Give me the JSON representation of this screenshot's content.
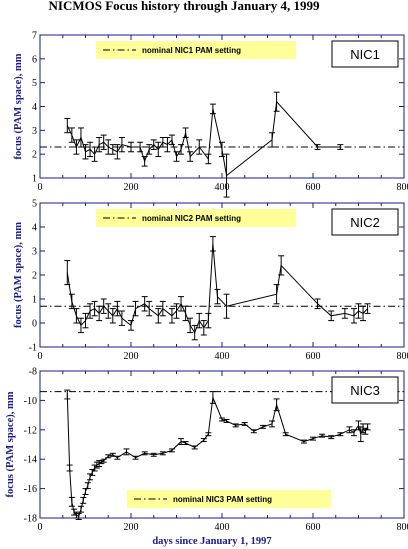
{
  "title": "NICMOS Focus history through January 4, 1999",
  "colors": {
    "axis": "#1a1a8c",
    "data": "#000000",
    "legend_bg": "#ffff99",
    "box_border": "#000000"
  },
  "chart_data": [
    {
      "type": "line",
      "panel_label": "NIC1",
      "ylabel": "focus (PAM space), mm",
      "xlabel": "",
      "xlim": [
        0,
        800
      ],
      "ylim": [
        1,
        7
      ],
      "xticks": [
        0,
        200,
        400,
        600,
        800
      ],
      "yticks": [
        1,
        2,
        3,
        4,
        5,
        6,
        7
      ],
      "legend": {
        "text": "nominal NIC1 PAM setting",
        "placement": "top-center"
      },
      "nominal": 2.3,
      "series": [
        {
          "x": [
            60,
            70,
            80,
            90,
            100,
            110,
            120,
            130,
            140,
            150,
            160,
            170,
            180,
            200,
            220,
            230,
            240,
            250,
            260,
            270,
            280,
            290,
            300,
            310,
            320,
            330,
            350,
            370,
            380,
            400,
            410,
            510,
            520,
            610,
            660
          ],
          "y": [
            3.2,
            2.8,
            2.3,
            2.7,
            2.1,
            2.2,
            2.0,
            2.4,
            2.5,
            2.3,
            2.2,
            2.1,
            2.4,
            2.3,
            2.3,
            1.7,
            2.2,
            2.4,
            2.2,
            2.5,
            2.4,
            2.6,
            1.9,
            2.2,
            2.9,
            1.9,
            2.3,
            1.8,
            3.9,
            2.2,
            1.1,
            2.6,
            4.2,
            2.3,
            2.3
          ],
          "err": [
            0.3,
            0.3,
            0.3,
            0.4,
            0.3,
            0.3,
            0.3,
            0.3,
            0.3,
            0.3,
            0.2,
            0.3,
            0.3,
            0.2,
            0.2,
            0.2,
            0.2,
            0.2,
            0.3,
            0.2,
            0.3,
            0.2,
            0.2,
            0.2,
            0.2,
            0.2,
            0.3,
            0.2,
            0.2,
            0.3,
            0.9,
            0.3,
            0.4,
            0.1,
            0.1
          ]
        }
      ]
    },
    {
      "type": "line",
      "panel_label": "NIC2",
      "ylabel": "focus (PAM space), mm",
      "xlabel": "",
      "xlim": [
        0,
        800
      ],
      "ylim": [
        -1,
        5
      ],
      "xticks": [
        0,
        200,
        400,
        600,
        800
      ],
      "yticks": [
        -1,
        0,
        1,
        2,
        3,
        4,
        5
      ],
      "legend": {
        "text": "nominal NIC2 PAM setting",
        "placement": "top-center"
      },
      "nominal": 0.7,
      "series": [
        {
          "x": [
            60,
            70,
            80,
            90,
            100,
            110,
            120,
            130,
            140,
            150,
            160,
            170,
            180,
            200,
            210,
            230,
            240,
            260,
            270,
            290,
            300,
            310,
            320,
            330,
            340,
            350,
            360,
            370,
            380,
            390,
            410,
            520,
            530,
            610,
            640,
            670,
            690,
            700,
            710,
            720
          ],
          "y": [
            2.1,
            0.9,
            0.3,
            -0.1,
            0.1,
            0.5,
            0.6,
            0.4,
            0.7,
            0.5,
            0.3,
            0.6,
            0.2,
            -0.1,
            0.6,
            0.8,
            0.6,
            0.3,
            0.6,
            0.3,
            0.5,
            0.8,
            0.4,
            -0.1,
            -0.4,
            0.1,
            -0.2,
            0.1,
            3.3,
            1.1,
            0.7,
            1.2,
            2.4,
            0.8,
            0.3,
            0.4,
            0.3,
            0.5,
            0.4,
            0.6
          ],
          "err": [
            0.5,
            0.3,
            0.3,
            0.3,
            0.3,
            0.3,
            0.3,
            0.3,
            0.3,
            0.3,
            0.3,
            0.3,
            0.3,
            0.2,
            0.3,
            0.3,
            0.3,
            0.3,
            0.3,
            0.3,
            0.3,
            0.3,
            0.3,
            0.3,
            0.3,
            0.3,
            0.3,
            0.3,
            0.3,
            0.3,
            0.5,
            0.4,
            0.4,
            0.2,
            0.2,
            0.2,
            0.3,
            0.3,
            0.3,
            0.2
          ]
        }
      ]
    },
    {
      "type": "line",
      "panel_label": "NIC3",
      "ylabel": "focus (PAM space), mm",
      "xlabel": "days since January 1, 1997",
      "xlim": [
        0,
        800
      ],
      "ylim": [
        -18,
        -8
      ],
      "xticks": [
        0,
        200,
        400,
        600,
        800
      ],
      "yticks": [
        -18,
        -16,
        -14,
        -12,
        -10,
        -8
      ],
      "legend": {
        "text": "nominal NIC3 PAM setting",
        "placement": "bottom-center"
      },
      "nominal": -9.4,
      "series": [
        {
          "x": [
            60,
            65,
            70,
            75,
            80,
            85,
            90,
            95,
            100,
            105,
            110,
            115,
            120,
            125,
            130,
            135,
            140,
            150,
            160,
            170,
            190,
            210,
            230,
            250,
            270,
            290,
            310,
            320,
            340,
            360,
            370,
            380,
            400,
            410,
            430,
            450,
            470,
            490,
            510,
            520,
            540,
            580,
            600,
            620,
            640,
            660,
            680,
            690,
            700,
            705,
            710,
            715,
            720
          ],
          "y": [
            -9.6,
            -14.6,
            -16.9,
            -17.6,
            -17.8,
            -17.9,
            -17.4,
            -16.8,
            -16.2,
            -15.8,
            -15.2,
            -14.9,
            -14.6,
            -14.4,
            -14.3,
            -14.2,
            -14.1,
            -13.8,
            -13.7,
            -13.9,
            -13.5,
            -13.9,
            -13.6,
            -13.7,
            -13.6,
            -13.4,
            -12.8,
            -12.9,
            -13.2,
            -12.7,
            -12.3,
            -9.8,
            -11.3,
            -11.4,
            -11.7,
            -11.6,
            -12.1,
            -11.8,
            -11.6,
            -10.3,
            -12.3,
            -12.8,
            -12.6,
            -12.4,
            -12.5,
            -12.3,
            -12.0,
            -12.2,
            -11.7,
            -12.3,
            -11.9,
            -12.1,
            -11.8
          ],
          "err": [
            0.3,
            0.2,
            0.3,
            0.2,
            0.2,
            0.2,
            0.2,
            0.2,
            0.2,
            0.2,
            0.2,
            0.2,
            0.2,
            0.2,
            0.2,
            0.1,
            0.1,
            0.1,
            0.1,
            0.1,
            0.2,
            0.1,
            0.1,
            0.1,
            0.1,
            0.1,
            0.2,
            0.1,
            0.1,
            0.1,
            0.1,
            0.4,
            0.1,
            0.1,
            0.1,
            0.1,
            0.1,
            0.1,
            0.2,
            0.4,
            0.1,
            0.1,
            0.1,
            0.1,
            0.1,
            0.1,
            0.2,
            0.2,
            0.3,
            0.5,
            0.3,
            0.2,
            0.2
          ]
        }
      ]
    }
  ]
}
